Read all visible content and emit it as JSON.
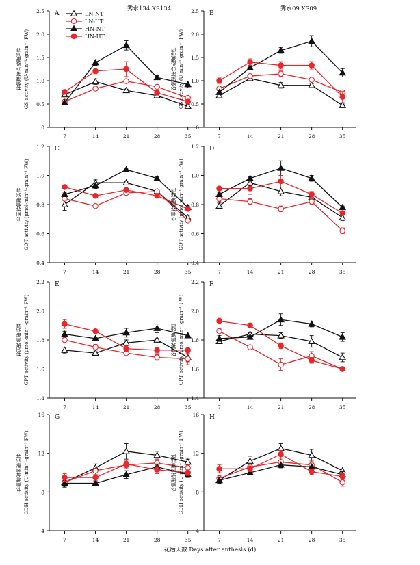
{
  "figure": {
    "xlabel": "花后天数 Days after anthesis (d)",
    "days": [
      7,
      14,
      21,
      28,
      35
    ],
    "column_titles": [
      "秀水134 XS134",
      "秀水09 XS09"
    ],
    "row_ylabels": [
      {
        "cn": "谷氨酰胺合成酶活性",
        "en": "GS activity (U·min⁻¹·grain⁻¹ FW)"
      },
      {
        "cn": "谷草转氨酶活性",
        "en": "GOT activity (μmol·min⁻¹·grain⁻¹ FW)"
      },
      {
        "cn": "谷丙转氨酶活性",
        "en": "GPT activity (μmol·min⁻¹·grain⁻¹ FW)"
      },
      {
        "cn": "谷氨酸脱氢酶活性",
        "en": "GDH activity (U·min⁻¹·grain⁻¹ FW)"
      }
    ],
    "legend": [
      {
        "name": "LN-NT",
        "color": "#111111",
        "marker": "triangle-open"
      },
      {
        "name": "LN-HT",
        "color": "#e8262b",
        "marker": "circle-open"
      },
      {
        "name": "HN-NT",
        "color": "#111111",
        "marker": "triangle-filled"
      },
      {
        "name": "HN-HT",
        "color": "#e8262b",
        "marker": "circle-filled"
      }
    ],
    "legend_placement": "top-left of panel A"
  },
  "chart_data": [
    {
      "panel": "A",
      "type": "line",
      "x": [
        7,
        14,
        21,
        28,
        35
      ],
      "ylim": [
        0,
        2.5
      ],
      "yticks": [
        "0",
        "0.5",
        "1.0",
        "1.5",
        "2.0",
        "2.5"
      ],
      "series": [
        {
          "name": "LN-NT",
          "values": [
            0.7,
            0.98,
            0.79,
            0.68,
            0.45
          ],
          "err": [
            0.04,
            0.06,
            0.03,
            0.03,
            0.04
          ]
        },
        {
          "name": "LN-HT",
          "values": [
            0.55,
            0.83,
            0.99,
            0.87,
            0.63
          ],
          "err": [
            0.03,
            0.04,
            0.04,
            0.04,
            0.03
          ]
        },
        {
          "name": "HN-NT",
          "values": [
            0.53,
            1.39,
            1.76,
            1.07,
            0.92
          ],
          "err": [
            0.03,
            0.06,
            0.1,
            0.04,
            0.07
          ]
        },
        {
          "name": "HN-HT",
          "values": [
            0.76,
            1.21,
            1.25,
            0.74,
            0.55
          ],
          "err": [
            0.04,
            0.06,
            0.16,
            0.05,
            0.04
          ]
        }
      ]
    },
    {
      "panel": "B",
      "type": "line",
      "x": [
        7,
        14,
        21,
        28,
        35
      ],
      "ylim": [
        0,
        2.5
      ],
      "yticks": [
        "0",
        "0.5",
        "1.0",
        "1.5",
        "2.0",
        "2.5"
      ],
      "series": [
        {
          "name": "LN-NT",
          "values": [
            0.68,
            1.05,
            0.9,
            0.9,
            0.47
          ],
          "err": [
            0.04,
            0.04,
            0.06,
            0.03,
            0.03
          ]
        },
        {
          "name": "LN-HT",
          "values": [
            0.83,
            1.1,
            1.15,
            1.02,
            0.75
          ],
          "err": [
            0.04,
            0.04,
            0.06,
            0.03,
            0.03
          ]
        },
        {
          "name": "HN-NT",
          "values": [
            0.75,
            1.28,
            1.65,
            1.85,
            1.17
          ],
          "err": [
            0.04,
            0.05,
            0.06,
            0.12,
            0.09
          ]
        },
        {
          "name": "HN-HT",
          "values": [
            1.0,
            1.4,
            1.33,
            1.33,
            0.65
          ],
          "err": [
            0.06,
            0.07,
            0.08,
            0.08,
            0.12
          ]
        }
      ]
    },
    {
      "panel": "C",
      "type": "line",
      "x": [
        7,
        14,
        21,
        28,
        35
      ],
      "ylim": [
        0.4,
        1.2
      ],
      "yticks": [
        "0.4",
        "0.6",
        "0.8",
        "1.0",
        "1.2"
      ],
      "series": [
        {
          "name": "LN-NT",
          "values": [
            0.8,
            0.95,
            0.95,
            0.89,
            0.71
          ],
          "err": [
            0.04,
            0.02,
            0.01,
            0.01,
            0.01
          ]
        },
        {
          "name": "LN-HT",
          "values": [
            0.84,
            0.79,
            0.88,
            0.89,
            0.69
          ],
          "err": [
            0.01,
            0.01,
            0.01,
            0.01,
            0.01
          ]
        },
        {
          "name": "HN-NT",
          "values": [
            0.87,
            0.93,
            1.04,
            0.98,
            0.78
          ],
          "err": [
            0.01,
            0.02,
            0.01,
            0.01,
            0.01
          ]
        },
        {
          "name": "HN-HT",
          "values": [
            0.92,
            0.86,
            0.9,
            0.86,
            0.77
          ],
          "err": [
            0.01,
            0.01,
            0.01,
            0.01,
            0.01
          ]
        }
      ]
    },
    {
      "panel": "D",
      "type": "line",
      "x": [
        7,
        14,
        21,
        28,
        35
      ],
      "ylim": [
        0.4,
        1.2
      ],
      "yticks": [
        "0.4",
        "0.6",
        "0.8",
        "1.0",
        "1.2"
      ],
      "series": [
        {
          "name": "LN-NT",
          "values": [
            0.79,
            0.95,
            0.89,
            0.85,
            0.71
          ],
          "err": [
            0.02,
            0.02,
            0.03,
            0.02,
            0.02
          ]
        },
        {
          "name": "LN-HT",
          "values": [
            0.84,
            0.82,
            0.77,
            0.82,
            0.62
          ],
          "err": [
            0.02,
            0.02,
            0.02,
            0.02,
            0.02
          ]
        },
        {
          "name": "HN-NT",
          "values": [
            0.87,
            0.98,
            1.05,
            0.98,
            0.78
          ],
          "err": [
            0.01,
            0.01,
            0.05,
            0.02,
            0.01
          ]
        },
        {
          "name": "HN-HT",
          "values": [
            0.91,
            0.91,
            0.96,
            0.87,
            0.74
          ],
          "err": [
            0.01,
            0.04,
            0.04,
            0.02,
            0.01
          ]
        }
      ]
    },
    {
      "panel": "E",
      "type": "line",
      "x": [
        7,
        14,
        21,
        28,
        35
      ],
      "ylim": [
        1.4,
        2.2
      ],
      "yticks": [
        "1.4",
        "1.6",
        "1.8",
        "2.0",
        "2.2"
      ],
      "series": [
        {
          "name": "LN-NT",
          "values": [
            1.73,
            1.71,
            1.78,
            1.8,
            1.68
          ],
          "err": [
            0.02,
            0.01,
            0.02,
            0.01,
            0.03
          ]
        },
        {
          "name": "LN-HT",
          "values": [
            1.8,
            1.75,
            1.71,
            1.68,
            1.67
          ],
          "err": [
            0.02,
            0.02,
            0.01,
            0.02,
            0.04
          ]
        },
        {
          "name": "HN-NT",
          "values": [
            1.84,
            1.81,
            1.85,
            1.88,
            1.83
          ],
          "err": [
            0.02,
            0.01,
            0.03,
            0.03,
            0.01
          ]
        },
        {
          "name": "HN-HT",
          "values": [
            1.91,
            1.86,
            1.74,
            1.73,
            1.73
          ],
          "err": [
            0.03,
            0.01,
            0.02,
            0.02,
            0.02
          ]
        }
      ]
    },
    {
      "panel": "F",
      "type": "line",
      "x": [
        7,
        14,
        21,
        28,
        35
      ],
      "ylim": [
        1.4,
        2.2
      ],
      "yticks": [
        "1.4",
        "1.6",
        "1.8",
        "2.0",
        "2.2"
      ],
      "series": [
        {
          "name": "LN-NT",
          "values": [
            1.79,
            1.84,
            1.83,
            1.79,
            1.68
          ],
          "err": [
            0.01,
            0.01,
            0.02,
            0.04,
            0.03
          ]
        },
        {
          "name": "LN-HT",
          "values": [
            1.86,
            1.75,
            1.63,
            1.69,
            1.6
          ],
          "err": [
            0.02,
            0.01,
            0.04,
            0.03,
            0.01
          ]
        },
        {
          "name": "HN-NT",
          "values": [
            1.81,
            1.82,
            1.94,
            1.91,
            1.82
          ],
          "err": [
            0.02,
            0.01,
            0.04,
            0.02,
            0.03
          ]
        },
        {
          "name": "HN-HT",
          "values": [
            1.93,
            1.9,
            1.76,
            1.66,
            1.6
          ],
          "err": [
            0.02,
            0.01,
            0.02,
            0.02,
            0.01
          ]
        }
      ]
    },
    {
      "panel": "G",
      "type": "line",
      "x": [
        7,
        14,
        21,
        28,
        35
      ],
      "ylim": [
        4,
        16
      ],
      "yticks": [
        "4",
        "8",
        "12",
        "16"
      ],
      "series": [
        {
          "name": "LN-NT",
          "values": [
            9.0,
            10.5,
            12.2,
            11.8,
            11.1
          ],
          "err": [
            0.5,
            0.4,
            0.8,
            0.4,
            0.3
          ]
        },
        {
          "name": "LN-HT",
          "values": [
            9.0,
            10.2,
            10.8,
            11.0,
            10.5
          ],
          "err": [
            0.4,
            0.4,
            0.4,
            0.4,
            0.3
          ]
        },
        {
          "name": "HN-NT",
          "values": [
            8.9,
            8.9,
            9.8,
            10.6,
            9.8
          ],
          "err": [
            0.3,
            0.2,
            0.4,
            0.3,
            0.3
          ]
        },
        {
          "name": "HN-HT",
          "values": [
            9.5,
            9.5,
            10.9,
            10.3,
            10.0
          ],
          "err": [
            0.4,
            0.3,
            0.4,
            0.4,
            0.3
          ]
        }
      ]
    },
    {
      "panel": "H",
      "type": "line",
      "x": [
        7,
        14,
        21,
        28,
        35
      ],
      "ylim": [
        4,
        16
      ],
      "yticks": [
        "4",
        "8",
        "12",
        "16"
      ],
      "series": [
        {
          "name": "LN-NT",
          "values": [
            9.2,
            11.2,
            12.5,
            11.8,
            10.2
          ],
          "err": [
            0.3,
            0.5,
            0.5,
            0.6,
            0.4
          ]
        },
        {
          "name": "LN-HT",
          "values": [
            9.4,
            10.6,
            11.1,
            10.8,
            9.0
          ],
          "err": [
            0.3,
            0.3,
            0.4,
            0.4,
            0.4
          ]
        },
        {
          "name": "HN-NT",
          "values": [
            9.2,
            10.0,
            10.8,
            10.6,
            9.8
          ],
          "err": [
            0.3,
            0.2,
            0.3,
            0.3,
            0.3
          ]
        },
        {
          "name": "HN-HT",
          "values": [
            10.4,
            10.4,
            11.9,
            10.1,
            9.6
          ],
          "err": [
            0.4,
            0.3,
            0.4,
            0.3,
            0.3
          ]
        }
      ]
    }
  ]
}
